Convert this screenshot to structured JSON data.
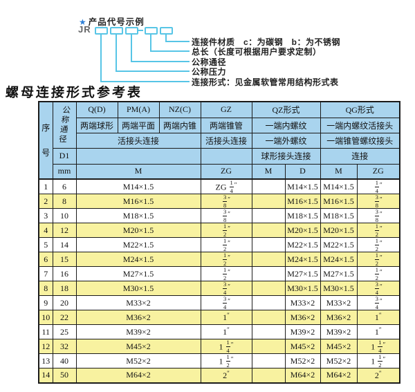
{
  "diagram": {
    "star_icon": "★",
    "title": "产品代号示例",
    "code": "JR",
    "labels": [
      "连接件材质　c：为碳钢　b：为不锈钢",
      "总长（长度可根据用户要求定制）",
      "公称通径",
      "公称压力",
      "连接形式：见金属软管常用结构形式表"
    ],
    "accent_color": "#57c5e6",
    "star_color": "#2e7fd6"
  },
  "table": {
    "title": "螺母连接形式参考表",
    "header": {
      "seq": "序号",
      "dn": "公称通径",
      "d1": "D1",
      "mm": "mm",
      "col_q": "Q(D)",
      "col_q_sub": "两端球形",
      "col_pm": "PM(A)",
      "col_pm_sub": "两端平面",
      "col_nz": "NZ(C)",
      "col_nz_sub": "两端内锥",
      "union_conn": "活接头连接",
      "col_gz": "GZ",
      "col_gz_sub": "两端锥管",
      "col_gz_conn": "活接头连接",
      "qz": "QZ形式",
      "qz_r2": "一端内螺纹",
      "qz_r3": "一端外螺纹",
      "qz_r4": "球形接头连接",
      "qg": "QG形式",
      "qg_r2": "一端内螺纹活接头",
      "qg_r3": "一端锥管螺纹接头",
      "qg_r4": "连接",
      "m": "M",
      "zg": "ZG",
      "d": "D"
    },
    "rows": [
      [
        "1",
        "6",
        "M14×1.5",
        "ZG 1/4\"",
        "",
        "M14×1.5",
        "M14×1.5",
        "1/4\""
      ],
      [
        "2",
        "8",
        "M16×1.5",
        "3/8\"",
        "",
        "M16×1.5",
        "M16×1.5",
        "3/8\""
      ],
      [
        "3",
        "10",
        "M18×1.5",
        "3/8\"",
        "",
        "M18×1.5",
        "M18×1.5",
        "3/8\""
      ],
      [
        "4",
        "12",
        "M20×1.5",
        "1/2\"",
        "",
        "M20×1.5",
        "M20×1.5",
        "1/2\""
      ],
      [
        "5",
        "14",
        "M22×1.5",
        "1/2\"",
        "",
        "M22×1.5",
        "M22×1.5",
        "1/2\""
      ],
      [
        "6",
        "15",
        "M24×1.5",
        "1/2\"",
        "",
        "M24×1.5",
        "M24×1.5",
        "1/2\""
      ],
      [
        "7",
        "16",
        "M27×1.5",
        "1/2\"",
        "",
        "M27×1.5",
        "M27×1.5",
        "1/2\""
      ],
      [
        "8",
        "18",
        "M30×1.5",
        "3/4\"",
        "",
        "M30×1.5",
        "M30×1.5",
        "3/4\""
      ],
      [
        "9",
        "20",
        "M33×2",
        "3/4\"",
        "",
        "M33×2",
        "M33×2",
        "3/4\""
      ],
      [
        "10",
        "22",
        "M36×2",
        "1\"",
        "",
        "M36×2",
        "M36×2",
        "1\""
      ],
      [
        "11",
        "25",
        "M39×2",
        "1\"",
        "",
        "M39×2",
        "M39×2",
        "1\""
      ],
      [
        "12",
        "32",
        "M45×2",
        "1 1/4\"",
        "",
        "M45×2",
        "M45×2",
        "1 1/4\""
      ],
      [
        "13",
        "40",
        "M52×2",
        "1 1/2\"",
        "",
        "M52×2",
        "M52×2",
        "1 1/2\""
      ],
      [
        "14",
        "50",
        "M64×2",
        "2\"",
        "",
        "M64×2",
        "M64×2",
        "2\""
      ]
    ],
    "colors": {
      "header_bg": "#a9d4ee",
      "row_alt_bg": "#f8f2a0",
      "row_bg": "#ffffff",
      "border": "#1a1a1a"
    }
  }
}
